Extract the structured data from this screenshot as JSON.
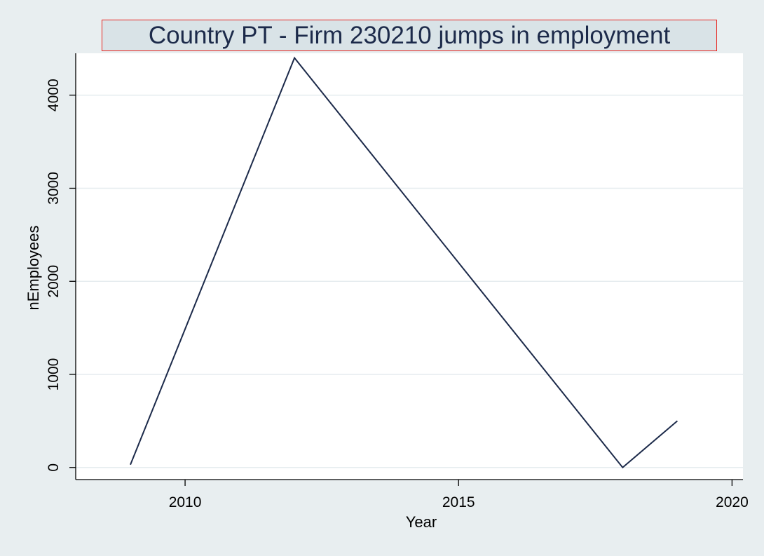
{
  "chart_data": {
    "type": "line",
    "title": "Country PT - Firm 230210  jumps in employment",
    "xlabel": "Year",
    "ylabel": "nEmployees",
    "x": [
      2009,
      2012,
      2018,
      2019
    ],
    "series": [
      {
        "values": [
          30,
          4400,
          0,
          500
        ]
      }
    ],
    "xlim": [
      2008,
      2020.2
    ],
    "ylim": [
      -130,
      4450
    ],
    "xticks": [
      2010,
      2015,
      2020
    ],
    "xtick_labels": [
      "2010",
      "2015",
      "2020"
    ],
    "yticks": [
      0,
      1000,
      2000,
      3000,
      4000
    ],
    "ytick_labels": [
      "0",
      "1000",
      "2000",
      "3000",
      "4000"
    ],
    "grid": true,
    "legend": "none",
    "colors": {
      "background": "#e8eef0",
      "plot_background": "#ffffff",
      "line": "#1c2a4a",
      "grid": "#e6ecef",
      "title_border": "#e8251f",
      "title_background": "#d9e3e7"
    }
  }
}
